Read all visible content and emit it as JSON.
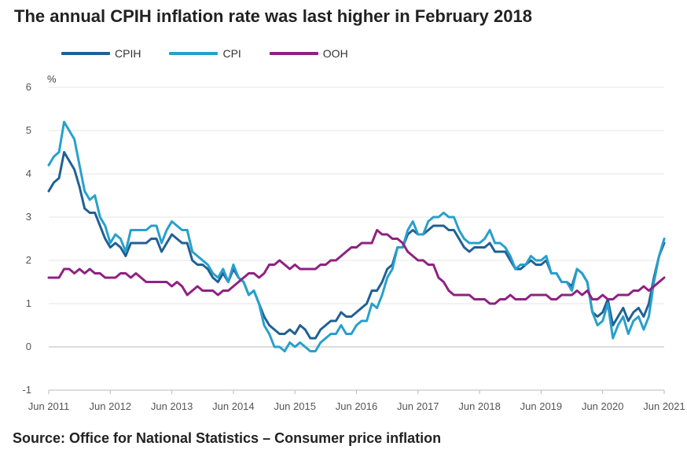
{
  "title": "The annual CPIH inflation rate was last higher in February 2018",
  "source": "Source: Office for National Statistics – Consumer price inflation",
  "chart_data": {
    "type": "line",
    "title": "The annual CPIH inflation rate was last higher in February 2018",
    "ylabel": "%",
    "xlabel": "",
    "ylim": [
      -1,
      6
    ],
    "yticks": [
      -1,
      0,
      1,
      2,
      3,
      4,
      5,
      6
    ],
    "x_start": "2011-06",
    "x_end": "2021-06",
    "xticks": [
      "Jun 2011",
      "Jun 2012",
      "Jun 2013",
      "Jun 2014",
      "Jun 2015",
      "Jun 2016",
      "Jun 2017",
      "Jun 2018",
      "Jun 2019",
      "Jun 2020",
      "Jun 2021"
    ],
    "grid": "horizontal",
    "legend_position": "top-left",
    "series": [
      {
        "name": "CPIH",
        "color": "#206095",
        "values": [
          3.6,
          3.8,
          3.9,
          4.5,
          4.3,
          4.1,
          3.7,
          3.2,
          3.1,
          3.1,
          2.8,
          2.5,
          2.3,
          2.4,
          2.3,
          2.1,
          2.4,
          2.4,
          2.4,
          2.4,
          2.5,
          2.5,
          2.2,
          2.4,
          2.6,
          2.5,
          2.4,
          2.4,
          2.0,
          1.9,
          1.9,
          1.8,
          1.6,
          1.5,
          1.7,
          1.5,
          1.8,
          1.6,
          1.5,
          1.2,
          1.3,
          1.0,
          0.7,
          0.5,
          0.4,
          0.3,
          0.3,
          0.4,
          0.3,
          0.5,
          0.4,
          0.2,
          0.2,
          0.4,
          0.5,
          0.6,
          0.6,
          0.8,
          0.7,
          0.7,
          0.8,
          0.9,
          1.0,
          1.3,
          1.3,
          1.5,
          1.8,
          1.9,
          2.3,
          2.3,
          2.6,
          2.7,
          2.6,
          2.6,
          2.7,
          2.8,
          2.8,
          2.8,
          2.7,
          2.7,
          2.5,
          2.3,
          2.2,
          2.3,
          2.3,
          2.3,
          2.4,
          2.2,
          2.2,
          2.2,
          2.0,
          1.8,
          1.8,
          1.9,
          2.0,
          1.9,
          1.9,
          2.0,
          1.7,
          1.7,
          1.5,
          1.5,
          1.4,
          1.8,
          1.7,
          1.5,
          0.8,
          0.7,
          0.8,
          1.1,
          0.5,
          0.7,
          0.9,
          0.6,
          0.8,
          0.9,
          0.7,
          1.0,
          1.6,
          2.1,
          2.4
        ]
      },
      {
        "name": "CPI",
        "color": "#27a0cc",
        "values": [
          4.2,
          4.4,
          4.5,
          5.2,
          5.0,
          4.8,
          4.2,
          3.6,
          3.4,
          3.5,
          3.0,
          2.8,
          2.4,
          2.6,
          2.5,
          2.2,
          2.7,
          2.7,
          2.7,
          2.7,
          2.8,
          2.8,
          2.4,
          2.7,
          2.9,
          2.8,
          2.7,
          2.7,
          2.2,
          2.1,
          2.0,
          1.9,
          1.7,
          1.6,
          1.8,
          1.5,
          1.9,
          1.6,
          1.5,
          1.2,
          1.3,
          1.0,
          0.5,
          0.3,
          0.0,
          0.0,
          -0.1,
          0.1,
          0.0,
          0.1,
          0.0,
          -0.1,
          -0.1,
          0.1,
          0.2,
          0.3,
          0.3,
          0.5,
          0.3,
          0.3,
          0.5,
          0.6,
          0.6,
          1.0,
          0.9,
          1.2,
          1.6,
          1.8,
          2.3,
          2.3,
          2.7,
          2.9,
          2.6,
          2.6,
          2.9,
          3.0,
          3.0,
          3.1,
          3.0,
          3.0,
          2.7,
          2.5,
          2.4,
          2.4,
          2.4,
          2.5,
          2.7,
          2.4,
          2.4,
          2.3,
          2.1,
          1.8,
          1.9,
          1.9,
          2.1,
          2.0,
          2.0,
          2.1,
          1.7,
          1.7,
          1.5,
          1.5,
          1.3,
          1.8,
          1.7,
          1.5,
          0.8,
          0.5,
          0.6,
          1.0,
          0.2,
          0.5,
          0.7,
          0.3,
          0.6,
          0.7,
          0.4,
          0.7,
          1.5,
          2.1,
          2.5
        ]
      },
      {
        "name": "OOH",
        "color": "#902082",
        "values": [
          1.6,
          1.6,
          1.6,
          1.8,
          1.8,
          1.7,
          1.8,
          1.7,
          1.8,
          1.7,
          1.7,
          1.6,
          1.6,
          1.6,
          1.7,
          1.7,
          1.6,
          1.7,
          1.6,
          1.5,
          1.5,
          1.5,
          1.5,
          1.5,
          1.4,
          1.5,
          1.4,
          1.2,
          1.3,
          1.4,
          1.3,
          1.3,
          1.3,
          1.2,
          1.3,
          1.3,
          1.4,
          1.5,
          1.6,
          1.7,
          1.7,
          1.6,
          1.7,
          1.9,
          1.9,
          2.0,
          1.9,
          1.8,
          1.9,
          1.8,
          1.8,
          1.8,
          1.8,
          1.9,
          1.9,
          2.0,
          2.0,
          2.1,
          2.2,
          2.3,
          2.3,
          2.4,
          2.4,
          2.4,
          2.7,
          2.6,
          2.6,
          2.5,
          2.5,
          2.4,
          2.2,
          2.1,
          2.0,
          2.0,
          1.9,
          1.9,
          1.6,
          1.5,
          1.3,
          1.2,
          1.2,
          1.2,
          1.2,
          1.1,
          1.1,
          1.1,
          1.0,
          1.0,
          1.1,
          1.1,
          1.2,
          1.1,
          1.1,
          1.1,
          1.2,
          1.2,
          1.2,
          1.2,
          1.1,
          1.1,
          1.2,
          1.2,
          1.2,
          1.3,
          1.2,
          1.3,
          1.1,
          1.1,
          1.2,
          1.1,
          1.1,
          1.2,
          1.2,
          1.2,
          1.3,
          1.3,
          1.4,
          1.3,
          1.4,
          1.5,
          1.6
        ]
      }
    ]
  }
}
